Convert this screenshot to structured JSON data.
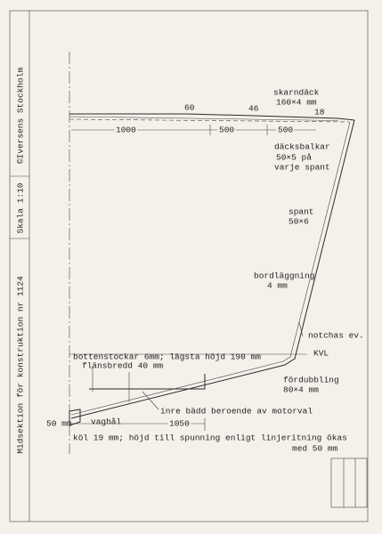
{
  "sidebar": {
    "title": "Midsektion för konstruktion nr 1124",
    "scale": "Skala 1:10",
    "maker": "©Iversens Stockholm"
  },
  "labels": {
    "skarndack": "skarndäck",
    "skarndack_size": "160×4 mm",
    "dim_18": "18",
    "dim_60": "60",
    "dim_46": "46",
    "dim_1000": "1000",
    "dim_500a": "500",
    "dim_500b": "500",
    "decksbalkar": "däcksbalkar",
    "decksbalkar_size": "50×5 på",
    "decksbalkar_note": "varje spant",
    "spant": "spant",
    "spant_size": "50×6",
    "bordlaggning": "bordläggning",
    "bordlaggning_size": "4 mm",
    "notchas": "notchas ev.",
    "kvl": "KVL",
    "bottenstockar": "bottenstockar 6mm; lägsta höjd 190 mm",
    "flansbredd": "flänsbredd 40 mm",
    "fordubbling": "fördubbling",
    "fordubbling_size": "80×4 mm",
    "inre_badd": "inre bädd beroende av motorval",
    "dim_50mm": "50 mm",
    "vaghal": "vaghål",
    "dim_1050": "1050",
    "kol": "köl 19 mm; höjd till spunning enligt linjeritning ökas",
    "kol_2": "med 50 mm"
  }
}
